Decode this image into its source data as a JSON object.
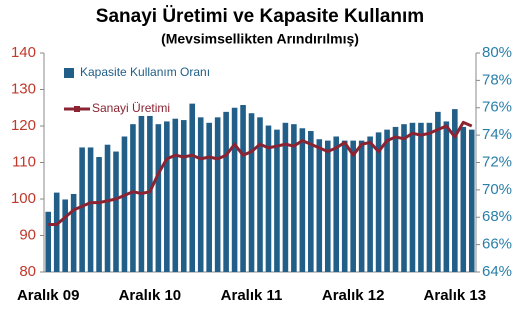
{
  "chart_data": {
    "type": "bar-line",
    "title": "Sanayi Üretimi ve Kapasite Kullanım",
    "subtitle": "(Mevsimsellikten Arındırılmış)",
    "categories": [
      "Aralık 09",
      null,
      null,
      null,
      null,
      null,
      null,
      null,
      null,
      null,
      null,
      null,
      "Aralık 10",
      null,
      null,
      null,
      null,
      null,
      null,
      null,
      null,
      null,
      null,
      null,
      "Aralık 11",
      null,
      null,
      null,
      null,
      null,
      null,
      null,
      null,
      null,
      null,
      null,
      "Aralık 12",
      null,
      null,
      null,
      null,
      null,
      null,
      null,
      null,
      null,
      null,
      null,
      "Aralık 13",
      null,
      null
    ],
    "series": [
      {
        "name": "Kapasite Kullanım Oranı",
        "type": "bar",
        "axis": "y2",
        "color": "#215f88",
        "values": [
          68.4,
          69.8,
          69.3,
          69.7,
          73.1,
          73.1,
          72.4,
          73.3,
          72.8,
          73.9,
          74.8,
          75.4,
          75.4,
          74.8,
          75.0,
          75.2,
          75.1,
          76.3,
          75.3,
          74.9,
          75.3,
          75.7,
          76.0,
          76.2,
          75.6,
          75.3,
          74.7,
          74.4,
          74.9,
          74.8,
          74.5,
          74.3,
          73.7,
          73.6,
          73.9,
          73.6,
          73.6,
          73.6,
          73.9,
          74.2,
          74.4,
          74.6,
          74.8,
          74.9,
          74.9,
          74.9,
          75.7,
          75.0,
          75.9,
          74.6,
          74.4
        ]
      },
      {
        "name": "Sanayi Üretimi",
        "type": "line",
        "axis": "y",
        "color": "#8b2332",
        "values": [
          93,
          93,
          95,
          97,
          98,
          99,
          99,
          99.5,
          100,
          101,
          102,
          101.5,
          102,
          107,
          111,
          112,
          111.5,
          112,
          111,
          111.5,
          111,
          112,
          115,
          112,
          113,
          115,
          114,
          114.5,
          115,
          114.5,
          116,
          115,
          114,
          113,
          114,
          115.5,
          112,
          115,
          115.5,
          113,
          116,
          117,
          116.5,
          118,
          117.5,
          118,
          119,
          120,
          117,
          121,
          120
        ]
      }
    ],
    "ylim": [
      80,
      140
    ],
    "yticks": [
      80,
      90,
      100,
      110,
      120,
      130,
      140
    ],
    "y2lim": [
      64,
      80
    ],
    "y2ticks": [
      {
        "value": 64,
        "label": "64%"
      },
      {
        "value": 66,
        "label": "66%"
      },
      {
        "value": 68,
        "label": "68%"
      },
      {
        "value": 70,
        "label": "70%"
      },
      {
        "value": 72,
        "label": "72%"
      },
      {
        "value": 74,
        "label": "74%"
      },
      {
        "value": 76,
        "label": "76%"
      },
      {
        "value": 78,
        "label": "78%"
      },
      {
        "value": 80,
        "label": "80%"
      }
    ],
    "grid": false,
    "legend": "upper left"
  }
}
